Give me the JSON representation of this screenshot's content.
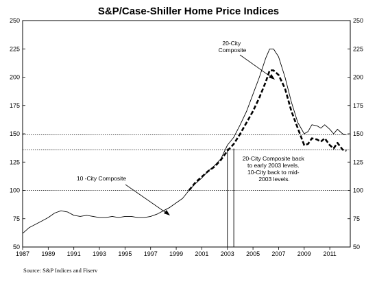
{
  "chart_data": {
    "type": "line",
    "title": "S&P/Case-Shiller Home Price Indices",
    "source": "Source: S&P Indices and Fiserv",
    "xlim": [
      1987,
      2012.6
    ],
    "ylim": [
      50,
      250
    ],
    "x_ticks": [
      "1987",
      "1989",
      "1991",
      "1993",
      "1995",
      "1997",
      "1999",
      "2001",
      "2003",
      "2005",
      "2007",
      "2009",
      "2011"
    ],
    "y_ticks": [
      "50",
      "75",
      "100",
      "125",
      "150",
      "175",
      "200",
      "225",
      "250"
    ],
    "reference_lines": [
      {
        "y": 100,
        "style": "dotted"
      },
      {
        "y": 136,
        "style": "dotted"
      },
      {
        "y": 149,
        "style": "dotted"
      }
    ],
    "vertical_markers": [
      {
        "x": 2003.0
      },
      {
        "x": 2003.5
      }
    ],
    "annotations": [
      {
        "id": "ann-10city",
        "lines": [
          "10 -City Composite"
        ]
      },
      {
        "id": "ann-20city",
        "lines": [
          "20-City",
          "Composite"
        ]
      },
      {
        "id": "ann-note",
        "lines": [
          "20-City Composite back",
          "to early 2003 levels.",
          "10-City back to mid-",
          "2003 levels."
        ]
      }
    ],
    "series": [
      {
        "name": "10 -City Composite",
        "style": "solid",
        "x": [
          1987.0,
          1987.5,
          1988.0,
          1988.5,
          1989.0,
          1989.5,
          1990.0,
          1990.5,
          1991.0,
          1991.5,
          1992.0,
          1992.5,
          1993.0,
          1993.5,
          1994.0,
          1994.5,
          1995.0,
          1995.5,
          1996.0,
          1996.5,
          1997.0,
          1997.5,
          1998.0,
          1998.5,
          1999.0,
          1999.5,
          2000.0,
          2000.5,
          2001.0,
          2001.5,
          2002.0,
          2002.5,
          2003.0,
          2003.5,
          2004.0,
          2004.5,
          2005.0,
          2005.5,
          2006.0,
          2006.3,
          2006.6,
          2007.0,
          2007.5,
          2008.0,
          2008.5,
          2009.0,
          2009.3,
          2009.6,
          2010.0,
          2010.3,
          2010.6,
          2011.0,
          2011.3,
          2011.6,
          2012.0,
          2012.3
        ],
        "y": [
          62,
          67,
          70,
          73,
          76,
          80,
          82,
          81,
          78,
          77,
          78,
          77,
          76,
          76,
          77,
          76,
          77,
          77,
          76,
          76,
          77,
          79,
          82,
          85,
          89,
          93,
          100,
          106,
          111,
          117,
          122,
          128,
          140,
          147,
          158,
          170,
          185,
          200,
          217,
          225,
          225,
          218,
          200,
          178,
          160,
          150,
          152,
          158,
          157,
          155,
          158,
          154,
          150,
          154,
          150,
          149
        ]
      },
      {
        "name": "20-City Composite",
        "style": "dashed",
        "x": [
          2000.0,
          2000.5,
          2001.0,
          2001.5,
          2002.0,
          2002.5,
          2003.0,
          2003.5,
          2004.0,
          2004.5,
          2005.0,
          2005.5,
          2006.0,
          2006.3,
          2006.6,
          2007.0,
          2007.5,
          2008.0,
          2008.5,
          2009.0,
          2009.3,
          2009.6,
          2010.0,
          2010.3,
          2010.6,
          2011.0,
          2011.3,
          2011.6,
          2012.0,
          2012.3
        ],
        "y": [
          100,
          107,
          112,
          117,
          121,
          127,
          135,
          141,
          150,
          160,
          170,
          182,
          196,
          206,
          206,
          202,
          190,
          170,
          155,
          140,
          141,
          146,
          145,
          143,
          146,
          140,
          137,
          142,
          136,
          135
        ]
      }
    ]
  }
}
